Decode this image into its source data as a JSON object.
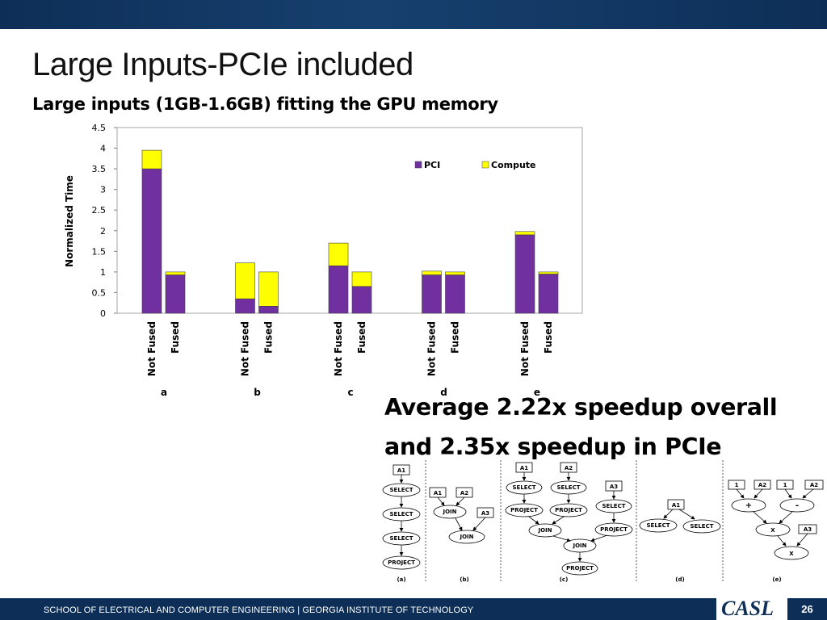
{
  "slide": {
    "title": "Large Inputs-PCIe included",
    "subtitle": "Large inputs (1GB-1.6GB) fitting the GPU memory",
    "callout_line1": "Average 2.22x speedup overall",
    "callout_line2": "and 2.35x speedup in PCIe",
    "footer_text": "SCHOOL OF ELECTRICAL AND COMPUTER ENGINEERING | GEORGIA INSTITUTE OF TECHNOLOGY",
    "logo_text": "CASL",
    "page_number": "26"
  },
  "colors": {
    "pci": "#7030a0",
    "compute": "#ffff00",
    "navy": "#0d2f57"
  },
  "chart_data": {
    "type": "bar",
    "stacked": true,
    "ylabel": "Normalized Time",
    "ylim": [
      0,
      4.5
    ],
    "yticks": [
      "0",
      "0.5",
      "1",
      "1.5",
      "2",
      "2.5",
      "3",
      "3.5",
      "4",
      "4.5"
    ],
    "legend_position": "top-right",
    "groups": [
      "a",
      "b",
      "c",
      "d",
      "e"
    ],
    "bar_labels": [
      "Not Fused",
      "Fused"
    ],
    "series": [
      {
        "name": "PCI",
        "color": "#7030a0",
        "values": [
          [
            3.5,
            0.93
          ],
          [
            0.35,
            0.17
          ],
          [
            1.15,
            0.65
          ],
          [
            0.93,
            0.93
          ],
          [
            1.9,
            0.95
          ]
        ]
      },
      {
        "name": "Compute",
        "color": "#ffff00",
        "values": [
          [
            0.45,
            0.07
          ],
          [
            0.87,
            0.83
          ],
          [
            0.55,
            0.35
          ],
          [
            0.09,
            0.07
          ],
          [
            0.08,
            0.05
          ]
        ]
      }
    ]
  },
  "diagrams": {
    "a": {
      "caption": "(a)",
      "nodes": [
        "A1",
        "SELECT",
        "SELECT",
        "SELECT",
        "PROJECT"
      ]
    },
    "b": {
      "caption": "(b)",
      "nodes": [
        "A1",
        "A2",
        "JOIN",
        "A3",
        "JOIN"
      ]
    },
    "c": {
      "caption": "(c)",
      "nodes": [
        "A1",
        "A2",
        "SELECT",
        "SELECT",
        "A3",
        "PROJECT",
        "PROJECT",
        "SELECT",
        "JOIN",
        "PROJECT",
        "JOIN",
        "PROJECT"
      ]
    },
    "d": {
      "caption": "(d)",
      "nodes": [
        "A1",
        "SELECT",
        "SELECT"
      ]
    },
    "e": {
      "caption": "(e)",
      "nodes": [
        "1",
        "A2",
        "1",
        "A2",
        "+",
        "-",
        "X",
        "A3",
        "X"
      ]
    }
  }
}
